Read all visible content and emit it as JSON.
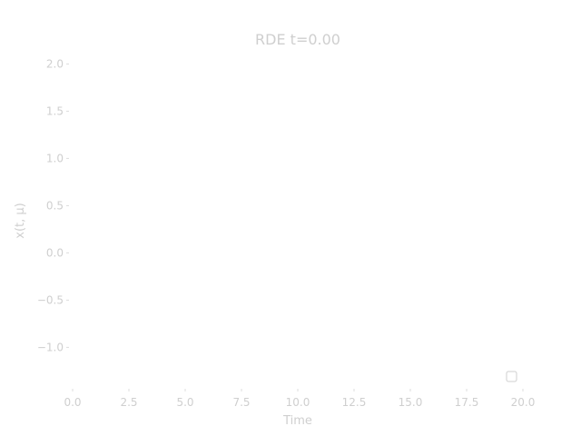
{
  "chart_data": {
    "type": "line",
    "title": "RDE t=0.00",
    "xlabel": "Time",
    "ylabel": "x(t, μ)",
    "xlim": [
      0.0,
      20.0
    ],
    "ylim": [
      -1.4,
      2.1
    ],
    "xticks": [
      {
        "value": 0.0,
        "label": "0.0"
      },
      {
        "value": 2.5,
        "label": "2.5"
      },
      {
        "value": 5.0,
        "label": "5.0"
      },
      {
        "value": 7.5,
        "label": "7.5"
      },
      {
        "value": 10.0,
        "label": "10.0"
      },
      {
        "value": 12.5,
        "label": "12.5"
      },
      {
        "value": 15.0,
        "label": "15.0"
      },
      {
        "value": 17.5,
        "label": "17.5"
      },
      {
        "value": 20.0,
        "label": "20.0"
      }
    ],
    "yticks": [
      {
        "value": 2.0,
        "label": "2.0"
      },
      {
        "value": 1.5,
        "label": "1.5"
      },
      {
        "value": 1.0,
        "label": "1.0"
      },
      {
        "value": 0.5,
        "label": "0.5"
      },
      {
        "value": 0.0,
        "label": "0.0"
      },
      {
        "value": -0.5,
        "label": "−0.5"
      },
      {
        "value": -1.0,
        "label": "−1.0"
      }
    ],
    "series": [],
    "grid": false,
    "legend": "lower-right"
  }
}
